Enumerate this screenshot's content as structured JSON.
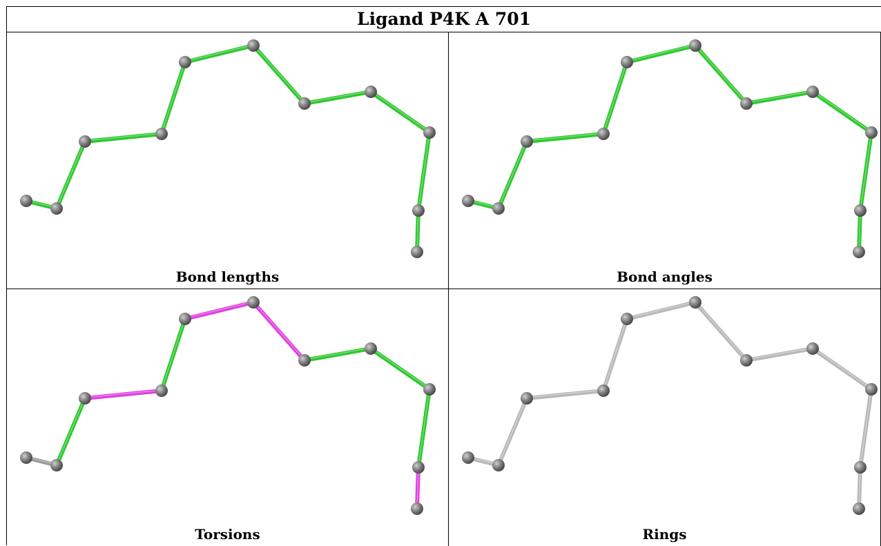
{
  "title": "Ligand P4K A 701",
  "panels": [
    {
      "id": "bond-lengths",
      "caption": "Bond lengths",
      "highlight_color": "#2ec82e",
      "base_color": "#2ec82e",
      "highlighted": [
        0,
        1,
        2,
        3,
        4,
        5,
        6,
        7,
        8,
        9,
        10
      ]
    },
    {
      "id": "bond-angles",
      "caption": "Bond angles",
      "highlight_color": "#2ec82e",
      "base_color": "#2ec82e",
      "highlighted": [
        0,
        1,
        2,
        3,
        4,
        5,
        6,
        7,
        8,
        9,
        10
      ]
    },
    {
      "id": "torsions",
      "caption": "Torsions",
      "highlight_color": "#e040e0",
      "base_color": "#2ec82e",
      "highlighted": [
        2,
        4,
        5,
        9
      ],
      "uncolored": [
        0,
        10
      ]
    },
    {
      "id": "rings",
      "caption": "Rings",
      "highlight_color": "#b8b8b8",
      "base_color": "#b8b8b8",
      "highlighted": []
    }
  ],
  "colors": {
    "atom": "#808080",
    "uncolored_bond": "#9a9a9a",
    "border": "#000000"
  }
}
